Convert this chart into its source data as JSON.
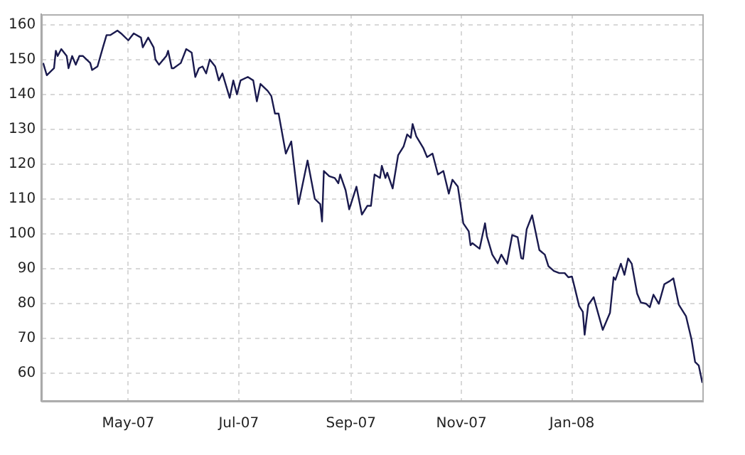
{
  "chart_data": {
    "type": "line",
    "grid": true,
    "legend": false,
    "marker": "none",
    "line_style": "solid",
    "xlim": [
      "2007-03-14",
      "2008-03-13"
    ],
    "ylim": [
      52,
      163
    ],
    "xticks": [
      {
        "value": "2007-05-01",
        "label": "May-07"
      },
      {
        "value": "2007-07-01",
        "label": "Jul-07"
      },
      {
        "value": "2007-09-01",
        "label": "Sep-07"
      },
      {
        "value": "2007-11-01",
        "label": "Nov-07"
      },
      {
        "value": "2008-01-01",
        "label": "Jan-08"
      }
    ],
    "yticks": [
      60,
      70,
      80,
      90,
      100,
      110,
      120,
      130,
      140,
      150,
      160
    ],
    "series": [
      {
        "color": "#1a1a4e",
        "x": [
          "2007-03-15",
          "2007-03-17",
          "2007-03-21",
          "2007-03-22",
          "2007-03-23",
          "2007-03-25",
          "2007-03-28",
          "2007-03-29",
          "2007-03-31",
          "2007-04-02",
          "2007-04-04",
          "2007-04-06",
          "2007-04-10",
          "2007-04-11",
          "2007-04-14",
          "2007-04-17",
          "2007-04-19",
          "2007-04-21",
          "2007-04-25",
          "2007-04-27",
          "2007-05-01",
          "2007-05-04",
          "2007-05-08",
          "2007-05-09",
          "2007-05-12",
          "2007-05-15",
          "2007-05-16",
          "2007-05-18",
          "2007-05-22",
          "2007-05-23",
          "2007-05-25",
          "2007-05-26",
          "2007-05-30",
          "2007-06-02",
          "2007-06-05",
          "2007-06-07",
          "2007-06-09",
          "2007-06-11",
          "2007-06-13",
          "2007-06-15",
          "2007-06-18",
          "2007-06-20",
          "2007-06-22",
          "2007-06-26",
          "2007-06-28",
          "2007-06-30",
          "2007-07-02",
          "2007-07-06",
          "2007-07-09",
          "2007-07-11",
          "2007-07-13",
          "2007-07-17",
          "2007-07-19",
          "2007-07-21",
          "2007-07-23",
          "2007-07-27",
          "2007-07-30",
          "2007-08-03",
          "2007-08-08",
          "2007-08-12",
          "2007-08-15",
          "2007-08-16",
          "2007-08-17",
          "2007-08-20",
          "2007-08-23",
          "2007-08-25",
          "2007-08-26",
          "2007-08-29",
          "2007-08-31",
          "2007-09-04",
          "2007-09-07",
          "2007-09-10",
          "2007-09-12",
          "2007-09-14",
          "2007-09-17",
          "2007-09-18",
          "2007-09-20",
          "2007-09-21",
          "2007-09-24",
          "2007-09-27",
          "2007-09-30",
          "2007-10-02",
          "2007-10-04",
          "2007-10-05",
          "2007-10-07",
          "2007-10-11",
          "2007-10-13",
          "2007-10-16",
          "2007-10-19",
          "2007-10-22",
          "2007-10-25",
          "2007-10-27",
          "2007-10-30",
          "2007-11-02",
          "2007-11-05",
          "2007-11-06",
          "2007-11-07",
          "2007-11-11",
          "2007-11-14",
          "2007-11-15",
          "2007-11-18",
          "2007-11-21",
          "2007-11-23",
          "2007-11-26",
          "2007-11-29",
          "2007-12-02",
          "2007-12-04",
          "2007-12-05",
          "2007-12-07",
          "2007-12-10",
          "2007-12-14",
          "2007-12-17",
          "2007-12-19",
          "2007-12-22",
          "2007-12-25",
          "2007-12-28",
          "2007-12-30",
          "2008-01-01",
          "2008-01-03",
          "2008-01-05",
          "2008-01-07",
          "2008-01-08",
          "2008-01-10",
          "2008-01-13",
          "2008-01-15",
          "2008-01-18",
          "2008-01-22",
          "2008-01-24",
          "2008-01-25",
          "2008-01-28",
          "2008-01-30",
          "2008-02-01",
          "2008-02-03",
          "2008-02-06",
          "2008-02-08",
          "2008-02-11",
          "2008-02-13",
          "2008-02-15",
          "2008-02-18",
          "2008-02-21",
          "2008-02-24",
          "2008-02-26",
          "2008-02-29",
          "2008-03-04",
          "2008-03-07",
          "2008-03-09",
          "2008-03-11",
          "2008-03-13"
        ],
        "values": [
          149,
          145.5,
          147.5,
          152.5,
          151,
          153,
          151,
          147.5,
          151,
          148.5,
          151,
          151,
          149,
          147,
          148,
          153.5,
          157,
          157,
          158.3,
          157.5,
          155.5,
          157.5,
          156.3,
          153.5,
          156.3,
          153.5,
          150,
          148.5,
          151,
          152.5,
          147.5,
          147.5,
          149,
          153,
          152,
          145,
          147.5,
          148,
          146,
          150,
          148,
          144,
          146,
          139,
          144,
          140,
          144,
          145,
          144,
          138,
          143,
          141,
          139.5,
          134.5,
          134.5,
          123,
          126.5,
          108.5,
          121,
          110,
          108.5,
          103.5,
          118,
          116.5,
          116,
          114.5,
          117,
          112.5,
          107,
          113.5,
          105.5,
          108,
          108,
          117,
          116,
          119.5,
          116,
          117.5,
          113,
          122.5,
          125,
          128.5,
          127.5,
          131.5,
          128,
          124.5,
          122,
          123,
          117,
          118,
          111.5,
          115.5,
          113.5,
          103,
          100.7,
          96.7,
          97.3,
          95.7,
          103,
          99.3,
          94,
          91.5,
          94,
          91.3,
          99.6,
          99,
          93,
          92.8,
          101.3,
          105.3,
          95.3,
          94,
          90.7,
          89.3,
          88.7,
          88.7,
          87.5,
          87.7,
          83.5,
          79.2,
          77.6,
          71,
          79.6,
          81.8,
          78,
          72.4,
          77.3,
          87.5,
          86.8,
          91.4,
          88.2,
          92.9,
          91.4,
          82.8,
          80.3,
          79.9,
          78.9,
          82.5,
          79.9,
          85.5,
          86.4,
          87.2,
          79.6,
          76.3,
          69.7,
          63.2,
          62.2,
          57.2
        ]
      }
    ]
  }
}
